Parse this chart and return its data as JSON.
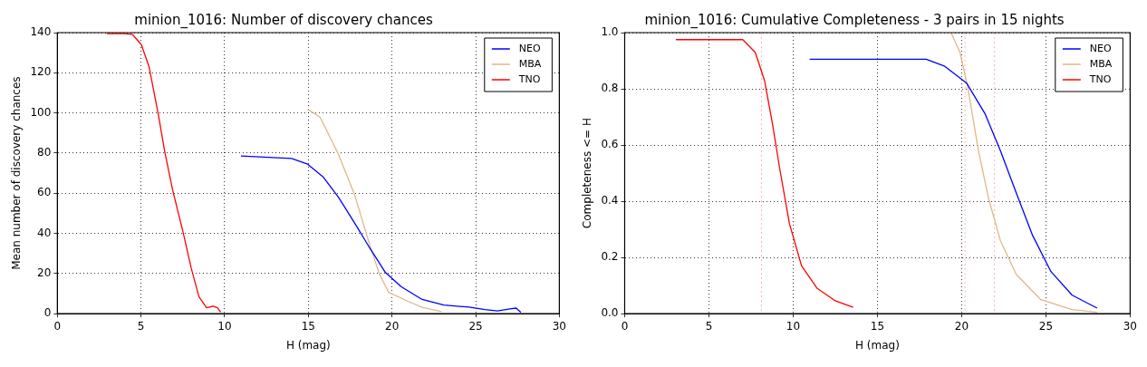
{
  "chart_data": [
    {
      "type": "line",
      "title": "minion_1016: Number of discovery chances",
      "xlabel": "H (mag)",
      "ylabel": "Mean number of discovery chances",
      "xlim": [
        0,
        30
      ],
      "xticks": [
        0,
        5,
        10,
        15,
        20,
        25,
        30
      ],
      "ylim": [
        0,
        140
      ],
      "yticks": [
        0,
        20,
        40,
        60,
        80,
        100,
        120,
        140
      ],
      "grid": true,
      "legend": "top right",
      "marker": "none",
      "line_style": "solid",
      "series": [
        {
          "name": "NEO",
          "color": "#0000ff",
          "x": [
            10.97,
            14.0,
            14.96,
            15.9,
            16.8,
            17.75,
            18.68,
            19.6,
            20.54,
            21.8,
            23.1,
            24.6,
            25.56,
            26.3,
            27.05,
            27.42,
            27.7
          ],
          "values": [
            78.6,
            77.3,
            74.5,
            68,
            58,
            45.4,
            32.6,
            20.6,
            13.5,
            7.1,
            4.3,
            3.3,
            2.1,
            1.4,
            2.4,
            2.8,
            0.7
          ]
        },
        {
          "name": "MBA",
          "color": "#deb887",
          "x": [
            14.96,
            15.7,
            16.8,
            17.75,
            18.68,
            19.24,
            19.8,
            20.9,
            21.8,
            22.96
          ],
          "values": [
            101.8,
            97.9,
            79.4,
            59.6,
            34,
            19.9,
            10.6,
            6.4,
            3.2,
            1
          ]
        },
        {
          "name": "TNO",
          "color": "#ff0000",
          "x": [
            2.96,
            4.0,
            4.5,
            5.02,
            5.48,
            6.04,
            6.41,
            6.88,
            7.53,
            8.0,
            8.46,
            8.92,
            9.3,
            9.57,
            9.76
          ],
          "values": [
            139.5,
            139.5,
            139,
            134,
            123,
            99,
            81,
            62,
            40,
            22.7,
            8.5,
            3,
            3.8,
            3,
            0.8
          ]
        }
      ]
    },
    {
      "type": "line",
      "title": "minion_1016: Cumulative Completeness - 3 pairs in 15 nights",
      "xlabel": "H (mag)",
      "ylabel": "Completeness <= H",
      "xlim": [
        0,
        30
      ],
      "xticks": [
        0,
        5,
        10,
        15,
        20,
        25,
        30
      ],
      "ylim": [
        0,
        1
      ],
      "yticks": [
        {
          "value": 0,
          "label": "0.0"
        },
        0.2,
        0.4,
        0.6,
        0.8,
        {
          "value": 1,
          "label": "1.0"
        }
      ],
      "grid": true,
      "legend": "top right",
      "marker": "none",
      "line_style": "solid",
      "ref_lines": [
        {
          "axis": "x",
          "value": 8.12,
          "color": "#ffb3b3",
          "line_style": "dotted"
        },
        {
          "axis": "x",
          "value": 20.2,
          "color": "#f5c0b0",
          "line_style": "dotted"
        },
        {
          "axis": "x",
          "value": 21.95,
          "color": "#ffb3b3",
          "line_style": "dotted"
        }
      ],
      "series": [
        {
          "name": "NEO",
          "color": "#0000ff",
          "x": [
            10.98,
            17.9,
            19.0,
            20.3,
            21.4,
            22.3,
            23.24,
            24.2,
            25.3,
            26.56,
            28.04
          ],
          "values": [
            0.905,
            0.905,
            0.88,
            0.82,
            0.71,
            0.58,
            0.43,
            0.28,
            0.15,
            0.066,
            0.02
          ]
        },
        {
          "name": "MBA",
          "color": "#deb887",
          "x": [
            19.37,
            19.9,
            20.35,
            21.0,
            21.6,
            22.3,
            23.24,
            24.7,
            26.56,
            28.04
          ],
          "values": [
            1.0,
            0.93,
            0.81,
            0.58,
            0.41,
            0.26,
            0.14,
            0.05,
            0.015,
            0.005
          ]
        },
        {
          "name": "TNO",
          "color": "#ff0000",
          "x": [
            3.04,
            7.01,
            7.75,
            8.3,
            8.76,
            9.22,
            9.78,
            10.5,
            11.43,
            12.5,
            13.56
          ],
          "values": [
            0.975,
            0.975,
            0.93,
            0.83,
            0.68,
            0.51,
            0.32,
            0.17,
            0.09,
            0.046,
            0.023
          ]
        }
      ]
    }
  ]
}
